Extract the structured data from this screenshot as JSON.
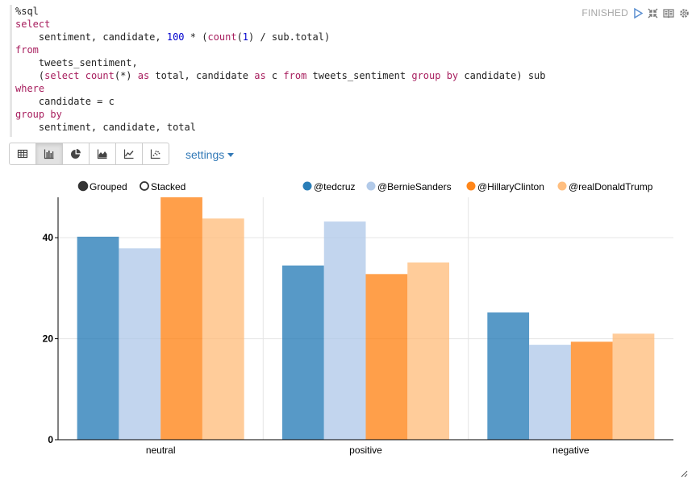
{
  "paragraph": {
    "status": "FINISHED",
    "code_lines": [
      [
        {
          "t": "%sql",
          "c": "plain"
        }
      ],
      [
        {
          "t": "select",
          "c": "kw"
        }
      ],
      [
        {
          "t": "    sentiment, candidate, ",
          "c": "plain"
        },
        {
          "t": "100",
          "c": "num"
        },
        {
          "t": " * (",
          "c": "plain"
        },
        {
          "t": "count",
          "c": "fn"
        },
        {
          "t": "(",
          "c": "plain"
        },
        {
          "t": "1",
          "c": "num"
        },
        {
          "t": ") / sub.total)",
          "c": "plain"
        }
      ],
      [
        {
          "t": "from",
          "c": "kw"
        }
      ],
      [
        {
          "t": "    tweets_sentiment,",
          "c": "plain"
        }
      ],
      [
        {
          "t": "    (",
          "c": "plain"
        },
        {
          "t": "select",
          "c": "kw"
        },
        {
          "t": " ",
          "c": "plain"
        },
        {
          "t": "count",
          "c": "fn"
        },
        {
          "t": "(*) ",
          "c": "plain"
        },
        {
          "t": "as",
          "c": "kw"
        },
        {
          "t": " total, candidate ",
          "c": "plain"
        },
        {
          "t": "as",
          "c": "kw"
        },
        {
          "t": " c ",
          "c": "plain"
        },
        {
          "t": "from",
          "c": "kw"
        },
        {
          "t": " tweets_sentiment ",
          "c": "plain"
        },
        {
          "t": "group by",
          "c": "kw"
        },
        {
          "t": " candidate) sub",
          "c": "plain"
        }
      ],
      [
        {
          "t": "where",
          "c": "kw"
        }
      ],
      [
        {
          "t": "    candidate = c",
          "c": "plain"
        }
      ],
      [
        {
          "t": "group by",
          "c": "kw"
        }
      ],
      [
        {
          "t": "    sentiment, candidate, total",
          "c": "plain"
        }
      ]
    ],
    "toolbar": {
      "buttons": [
        {
          "name": "table-view-button",
          "icon": "table-icon",
          "active": false
        },
        {
          "name": "bar-chart-button",
          "icon": "bar-chart-icon",
          "active": true
        },
        {
          "name": "pie-chart-button",
          "icon": "pie-chart-icon",
          "active": false
        },
        {
          "name": "area-chart-button",
          "icon": "area-chart-icon",
          "active": false
        },
        {
          "name": "line-chart-button",
          "icon": "line-chart-icon",
          "active": false
        },
        {
          "name": "scatter-chart-button",
          "icon": "scatter-chart-icon",
          "active": false
        }
      ],
      "settings_label": "settings"
    }
  },
  "controls": {
    "grouped_label": "Grouped",
    "stacked_label": "Stacked",
    "selected": "Grouped"
  },
  "colors": {
    "@tedcruz": "#1f77b4",
    "@BernieSanders": "#aec7e8",
    "@HillaryClinton": "#ff7f0e",
    "@realDonaldTrump": "#ffbb78"
  },
  "chart_data": {
    "type": "bar",
    "mode": "grouped",
    "categories": [
      "neutral",
      "positive",
      "negative"
    ],
    "series": [
      {
        "name": "@tedcruz",
        "values": [
          40.2,
          34.5,
          25.2
        ]
      },
      {
        "name": "@BernieSanders",
        "values": [
          37.9,
          43.2,
          18.8
        ]
      },
      {
        "name": "@HillaryClinton",
        "values": [
          48.0,
          32.8,
          19.4
        ]
      },
      {
        "name": "@realDonaldTrump",
        "values": [
          43.8,
          35.1,
          21.0
        ]
      }
    ],
    "yticks": [
      0,
      20,
      40
    ],
    "ylim": [
      0,
      48
    ],
    "grid": true,
    "legend_position": "top-right"
  }
}
